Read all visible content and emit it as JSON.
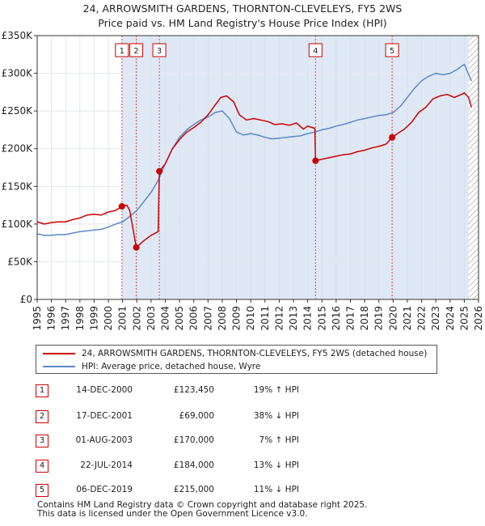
{
  "title_line1": "24, ARROWSMITH GARDENS, THORNTON-CLEVELEYS, FY5 2WS",
  "title_line2": "Price paid vs. HM Land Registry's House Price Index (HPI)",
  "colors": {
    "property": "#cc0000",
    "hpi": "#5b8ac6",
    "shade": "#dfe8f5",
    "vline": "#e05050"
  },
  "chart_data": {
    "type": "line",
    "title": "24, ARROWSMITH GARDENS, THORNTON-CLEVELEYS, FY5 2WS — Price paid vs. HM Land Registry's House Price Index (HPI)",
    "xlabel": "",
    "ylabel": "",
    "xlim": [
      1995,
      2026
    ],
    "ylim": [
      0,
      350000
    ],
    "y_ticks": [
      {
        "value": 0,
        "label": "£0"
      },
      {
        "value": 50000,
        "label": "£50K"
      },
      {
        "value": 100000,
        "label": "£100K"
      },
      {
        "value": 150000,
        "label": "£150K"
      },
      {
        "value": 200000,
        "label": "£200K"
      },
      {
        "value": 250000,
        "label": "£250K"
      },
      {
        "value": 300000,
        "label": "£300K"
      },
      {
        "value": 350000,
        "label": "£350K"
      }
    ],
    "x_ticks": [
      "1995",
      "1996",
      "1997",
      "1998",
      "1999",
      "2000",
      "2001",
      "2002",
      "2003",
      "2004",
      "2005",
      "2006",
      "2007",
      "2008",
      "2009",
      "2010",
      "2011",
      "2012",
      "2013",
      "2014",
      "2015",
      "2016",
      "2017",
      "2018",
      "2019",
      "2020",
      "2021",
      "2022",
      "2023",
      "2024",
      "2025",
      "2026"
    ],
    "shaded_from": 2000.95,
    "hatch_from": 2025.3,
    "series": [
      {
        "name": "24, ARROWSMITH GARDENS, THORNTON-CLEVELEYS, FY5 2WS (detached house)",
        "color": "#cc0000",
        "x": [
          1995.0,
          1995.5,
          1996.0,
          1996.5,
          1997.0,
          1997.5,
          1998.0,
          1998.5,
          1999.0,
          1999.5,
          2000.0,
          2000.5,
          2000.95,
          2001.3,
          2001.5,
          2001.96,
          2002.5,
          2003.0,
          2003.5,
          2003.58,
          2004.0,
          2004.5,
          2005.0,
          2005.5,
          2006.0,
          2006.5,
          2007.0,
          2007.5,
          2007.9,
          2008.3,
          2008.8,
          2009.2,
          2009.7,
          2010.2,
          2010.7,
          2011.2,
          2011.7,
          2012.2,
          2012.7,
          2013.2,
          2013.7,
          2014.0,
          2014.5,
          2014.55,
          2015.0,
          2015.5,
          2016.0,
          2016.5,
          2017.0,
          2017.5,
          2018.0,
          2018.5,
          2019.0,
          2019.5,
          2019.93,
          2020.3,
          2020.8,
          2021.3,
          2021.8,
          2022.3,
          2022.8,
          2023.3,
          2023.8,
          2024.3,
          2024.8,
          2025.0,
          2025.3,
          2025.5
        ],
        "y": [
          103000,
          100000,
          102000,
          103000,
          103000,
          106000,
          108000,
          112000,
          113000,
          112000,
          116000,
          118000,
          123450,
          125000,
          118000,
          69000,
          78000,
          85000,
          90000,
          170000,
          180000,
          200000,
          212000,
          222000,
          228000,
          235000,
          245000,
          258000,
          268000,
          270000,
          262000,
          245000,
          238000,
          240000,
          238000,
          236000,
          232000,
          233000,
          231000,
          234000,
          226000,
          230000,
          227000,
          184000,
          186000,
          188000,
          190000,
          192000,
          193000,
          196000,
          198000,
          201000,
          203000,
          206000,
          215000,
          220000,
          226000,
          235000,
          248000,
          255000,
          266000,
          270000,
          272000,
          268000,
          272000,
          274000,
          268000,
          255000
        ]
      },
      {
        "name": "HPI: Average price, detached house, Wyre",
        "color": "#5b8ac6",
        "x": [
          1995.0,
          1995.5,
          1996.0,
          1996.5,
          1997.0,
          1997.5,
          1998.0,
          1998.5,
          1999.0,
          1999.5,
          2000.0,
          2000.5,
          2001.0,
          2001.5,
          2002.0,
          2002.5,
          2003.0,
          2003.5,
          2004.0,
          2004.5,
          2005.0,
          2005.5,
          2006.0,
          2006.5,
          2007.0,
          2007.5,
          2008.0,
          2008.5,
          2009.0,
          2009.5,
          2010.0,
          2010.5,
          2011.0,
          2011.5,
          2012.0,
          2012.5,
          2013.0,
          2013.5,
          2014.0,
          2014.5,
          2015.0,
          2015.5,
          2016.0,
          2016.5,
          2017.0,
          2017.5,
          2018.0,
          2018.5,
          2019.0,
          2019.5,
          2020.0,
          2020.5,
          2021.0,
          2021.5,
          2022.0,
          2022.5,
          2023.0,
          2023.5,
          2024.0,
          2024.5,
          2025.0,
          2025.5
        ],
        "y": [
          87000,
          85000,
          85000,
          86000,
          86000,
          88000,
          90000,
          91000,
          92000,
          93000,
          96000,
          100000,
          103000,
          110000,
          118000,
          130000,
          142000,
          158000,
          180000,
          200000,
          215000,
          225000,
          232000,
          238000,
          242000,
          248000,
          250000,
          240000,
          222000,
          218000,
          220000,
          218000,
          215000,
          213000,
          214000,
          215000,
          216000,
          217000,
          220000,
          222000,
          225000,
          227000,
          230000,
          232000,
          235000,
          238000,
          240000,
          242000,
          244000,
          245000,
          248000,
          256000,
          268000,
          280000,
          290000,
          296000,
          300000,
          298000,
          300000,
          305000,
          312000,
          290000
        ]
      }
    ],
    "sales": [
      {
        "n": "1",
        "x": 2000.95,
        "price": 123450
      },
      {
        "n": "2",
        "x": 2001.96,
        "price": 69000
      },
      {
        "n": "3",
        "x": 2003.58,
        "price": 170000
      },
      {
        "n": "4",
        "x": 2014.55,
        "price": 184000
      },
      {
        "n": "5",
        "x": 2019.93,
        "price": 215000
      }
    ]
  },
  "legend": {
    "property": "24, ARROWSMITH GARDENS, THORNTON-CLEVELEYS, FY5 2WS (detached house)",
    "hpi": "HPI: Average price, detached house, Wyre"
  },
  "transactions": [
    {
      "n": "1",
      "date": "14-DEC-2000",
      "price": "£123,450",
      "hpi": "19% ↑ HPI"
    },
    {
      "n": "2",
      "date": "17-DEC-2001",
      "price": "£69,000",
      "hpi": "38% ↓ HPI"
    },
    {
      "n": "3",
      "date": "01-AUG-2003",
      "price": "£170,000",
      "hpi": "7% ↑ HPI"
    },
    {
      "n": "4",
      "date": "22-JUL-2014",
      "price": "£184,000",
      "hpi": "13% ↓ HPI"
    },
    {
      "n": "5",
      "date": "06-DEC-2019",
      "price": "£215,000",
      "hpi": "11% ↓ HPI"
    }
  ],
  "footer_line1": "Contains HM Land Registry data © Crown copyright and database right 2025.",
  "footer_line2": "This data is licensed under the Open Government Licence v3.0."
}
